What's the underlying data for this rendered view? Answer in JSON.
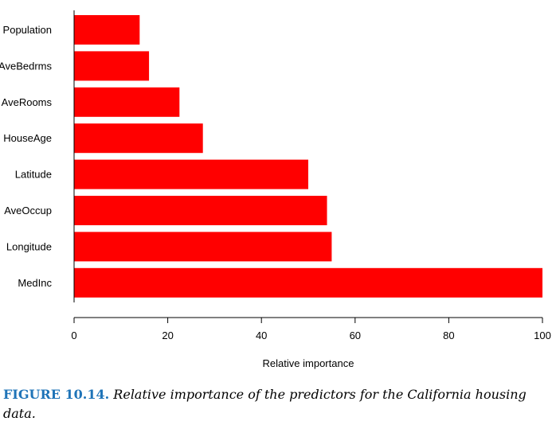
{
  "chart_data": {
    "type": "bar",
    "orientation": "horizontal",
    "categories": [
      "Population",
      "AveBedrms",
      "AveRooms",
      "HouseAge",
      "Latitude",
      "AveOccup",
      "Longitude",
      "MedInc"
    ],
    "values": [
      14,
      16,
      22.5,
      27.5,
      50,
      54,
      55,
      100
    ],
    "bar_color": "#ff0000",
    "xlabel": "Relative importance",
    "ylabel": "",
    "xlim": [
      0,
      100
    ],
    "xticks": [
      0,
      20,
      40,
      60,
      80,
      100
    ],
    "grid": false
  },
  "caption": {
    "label": "FIGURE 10.14.",
    "text": "Relative importance of the predictors for the California housing data."
  }
}
